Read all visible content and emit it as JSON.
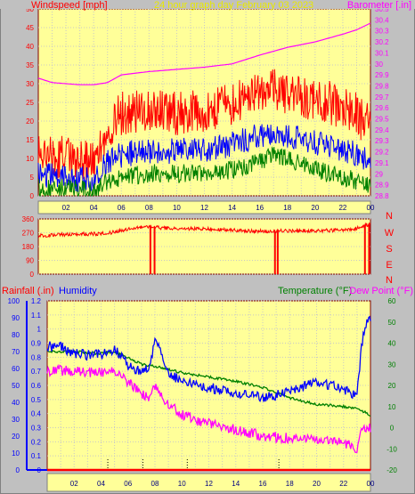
{
  "chart_data": [
    {
      "type": "line",
      "title": "24 hour graph day   February 03 2023",
      "left_axis_label": "Windspeed [mph]",
      "right_axis_label": "Barometer [.in]",
      "left_ylim": [
        0,
        50
      ],
      "left_ticks": [
        "0",
        "5",
        "10",
        "15",
        "20",
        "25",
        "30",
        "35",
        "40",
        "45",
        "50"
      ],
      "right_ylim": [
        28.8,
        30.5
      ],
      "right_ticks": [
        "28.8",
        "28.9",
        "29",
        "29.1",
        "29.2",
        "29.3",
        "29.4",
        "29.5",
        "29.6",
        "29.7",
        "29.8",
        "29.9",
        "30",
        "30.1",
        "30.2",
        "30.3",
        "30.4",
        "30.5"
      ],
      "x_ticks": [
        "02",
        "04",
        "06",
        "08",
        "10",
        "12",
        "14",
        "16",
        "18",
        "20",
        "22",
        "00"
      ],
      "x_range_hours": [
        0,
        24
      ],
      "grid": true,
      "series": [
        {
          "axis": "right",
          "color": "#ff00ff",
          "hours": [
            0,
            1,
            2,
            3,
            4,
            5,
            6,
            8,
            10,
            12,
            14,
            16,
            18,
            20,
            22,
            23,
            24
          ],
          "values": [
            29.87,
            29.83,
            29.82,
            29.81,
            29.81,
            29.83,
            29.9,
            29.93,
            29.95,
            29.97,
            30.0,
            30.08,
            30.15,
            30.2,
            30.27,
            30.31,
            30.37
          ]
        },
        {
          "axis": "left",
          "color": "#ff0000",
          "hours": [
            0,
            2,
            4,
            5,
            6,
            8,
            10,
            12,
            14,
            16,
            17,
            18,
            20,
            22,
            23,
            24
          ],
          "values": [
            11,
            10,
            9,
            17,
            22,
            23,
            22,
            23,
            25,
            27,
            29,
            27,
            26,
            24,
            22,
            18
          ]
        },
        {
          "axis": "left",
          "color": "#0000ff",
          "hours": [
            0,
            2,
            4,
            5,
            6,
            8,
            10,
            12,
            14,
            16,
            17,
            18,
            20,
            22,
            23,
            24
          ],
          "values": [
            6,
            5,
            4,
            9,
            11,
            12,
            12,
            12,
            14,
            16,
            17,
            16,
            14,
            12,
            11,
            10
          ]
        },
        {
          "axis": "left",
          "color": "#008000",
          "hours": [
            0,
            2,
            4,
            5,
            6,
            8,
            10,
            12,
            14,
            16,
            17,
            18,
            20,
            22,
            23,
            24
          ],
          "values": [
            2,
            2,
            1,
            4,
            5,
            6,
            6,
            6,
            7,
            9,
            11,
            10,
            7,
            5,
            4,
            3
          ]
        }
      ]
    },
    {
      "type": "line",
      "ylim": [
        0,
        360
      ],
      "y_ticks": [
        "0",
        "90",
        "180",
        "270",
        "360"
      ],
      "direction_labels": [
        "N",
        "W",
        "S",
        "E",
        "N"
      ],
      "x_range_hours": [
        0,
        24
      ],
      "grid": true,
      "series": [
        {
          "color": "#ff0000",
          "hours": [
            0,
            1,
            2,
            3,
            4,
            5,
            6,
            7,
            8,
            9,
            10,
            12,
            14,
            16,
            18,
            20,
            22,
            23,
            24
          ],
          "values": [
            250,
            256,
            258,
            262,
            262,
            266,
            285,
            300,
            312,
            300,
            300,
            295,
            288,
            280,
            282,
            283,
            288,
            300,
            330
          ],
          "dips_hours": [
            8.1,
            8.4,
            17.1,
            17.3,
            23.6,
            23.9
          ]
        }
      ]
    },
    {
      "type": "line",
      "left_axis_label": "Rainfall (.in)",
      "left_axis_label_2": "Humidity",
      "right_axis_label": "Temperature (°F)",
      "right_axis_label_2": "Dew Point (°F)",
      "humidity_ticks": [
        "0",
        "10",
        "20",
        "30",
        "40",
        "50",
        "60",
        "70",
        "80",
        "90",
        "100"
      ],
      "humidity_range": [
        0,
        100
      ],
      "rain_ticks": [
        "0",
        "0.1",
        "0.2",
        "0.3",
        "0.4",
        "0.5",
        "0.6",
        "0.7",
        "0.8",
        "0.9",
        "1",
        "1.1",
        "1.2"
      ],
      "rain_range": [
        0,
        1.2
      ],
      "temp_ticks": [
        "-20",
        "-10",
        "0",
        "10",
        "20",
        "30",
        "40",
        "50",
        "60"
      ],
      "temp_range": [
        -20,
        60
      ],
      "x_ticks": [
        "02",
        "04",
        "06",
        "08",
        "10",
        "12",
        "14",
        "16",
        "18",
        "20",
        "22",
        "00"
      ],
      "x_range_hours": [
        0,
        24
      ],
      "grid": true,
      "series": [
        {
          "name": "Temperature",
          "axis": "temp",
          "color": "#008000",
          "hours": [
            0,
            2,
            4,
            5,
            6,
            7,
            8,
            10,
            12,
            14,
            16,
            18,
            20,
            22,
            23,
            24
          ],
          "values": [
            36,
            36,
            35,
            36,
            33,
            30,
            29,
            26,
            24,
            22,
            19,
            14,
            11,
            10,
            9,
            6
          ]
        },
        {
          "name": "Humidity",
          "axis": "humidity",
          "color": "#0000ff",
          "hours": [
            0,
            1,
            2,
            3,
            4,
            5,
            6,
            7,
            7.5,
            8,
            8.5,
            9,
            10,
            12,
            14,
            16,
            17,
            18,
            20,
            22,
            23,
            23.3,
            23.6,
            24
          ],
          "values": [
            73,
            73,
            69,
            68,
            68,
            72,
            62,
            58,
            60,
            76,
            70,
            58,
            52,
            49,
            45,
            43,
            44,
            47,
            52,
            48,
            44,
            70,
            85,
            90
          ]
        },
        {
          "name": "Dew Point",
          "axis": "temp",
          "color": "#ff00ff",
          "hours": [
            0,
            2,
            4,
            5,
            6,
            7,
            7.5,
            8,
            8.5,
            9,
            10,
            12,
            14,
            16,
            18,
            20,
            22,
            23,
            23.3,
            24
          ],
          "values": [
            27,
            27,
            26,
            27,
            22,
            16,
            14,
            20,
            14,
            11,
            6,
            2,
            -1,
            -4,
            -5,
            -6,
            -7,
            -10,
            -2,
            0
          ]
        },
        {
          "name": "Rainfall",
          "axis": "rain",
          "color": "#ff0000",
          "hours": [
            0,
            24
          ],
          "values": [
            0,
            0
          ]
        }
      ],
      "event_markers_hours": [
        4.5,
        7.1,
        10.4,
        17.2
      ]
    }
  ]
}
